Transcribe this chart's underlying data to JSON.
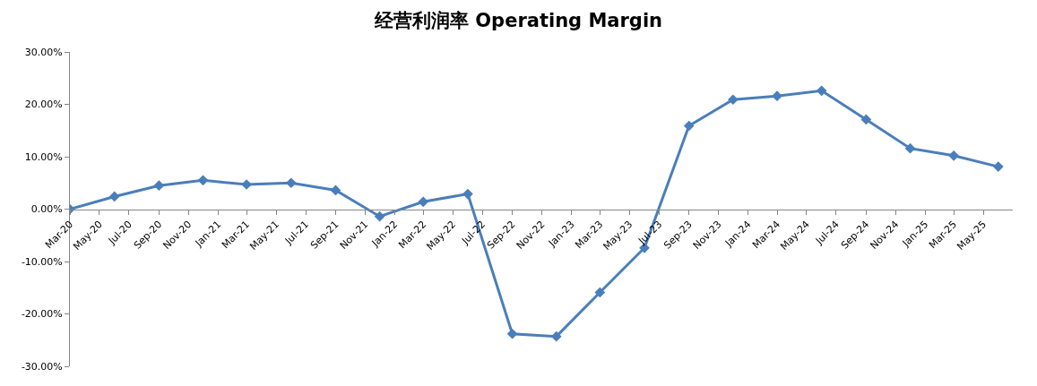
{
  "chart_data": {
    "type": "line",
    "title": "经营利润率 Operating Margin",
    "x": [
      "2020-03",
      "2020-06",
      "2020-09",
      "2020-12",
      "2021-03",
      "2021-06",
      "2021-09",
      "2021-12",
      "2022-03",
      "2022-06",
      "2022-09",
      "2022-12",
      "2023-03",
      "2023-06",
      "2023-09",
      "2023-12",
      "2024-03",
      "2024-06",
      "2024-09",
      "2024-12",
      "2025-03",
      "2025-06"
    ],
    "series": [
      {
        "color": "#4a7ebb",
        "values": [
          0,
          2.4,
          4.5,
          5.5,
          4.7,
          5.0,
          3.6,
          -1.4,
          1.4,
          2.9,
          -23.8,
          -24.3,
          -15.9,
          -7.4,
          15.9,
          20.9,
          21.6,
          22.6,
          17.1,
          11.6,
          10.2,
          8.1
        ]
      }
    ],
    "xlim": [
      "2020-03",
      "2025-07"
    ],
    "xticks": [
      {
        "value": "2020-03",
        "label": "Mar-20"
      },
      {
        "value": "2020-05",
        "label": "May-20"
      },
      {
        "value": "2020-07",
        "label": "Jul-20"
      },
      {
        "value": "2020-09",
        "label": "Sep-20"
      },
      {
        "value": "2020-11",
        "label": "Nov-20"
      },
      {
        "value": "2021-01",
        "label": "Jan-21"
      },
      {
        "value": "2021-03",
        "label": "Mar-21"
      },
      {
        "value": "2021-05",
        "label": "May-21"
      },
      {
        "value": "2021-07",
        "label": "Jul-21"
      },
      {
        "value": "2021-09",
        "label": "Sep-21"
      },
      {
        "value": "2021-11",
        "label": "Nov-21"
      },
      {
        "value": "2022-01",
        "label": "Jan-22"
      },
      {
        "value": "2022-03",
        "label": "Mar-22"
      },
      {
        "value": "2022-05",
        "label": "May-22"
      },
      {
        "value": "2022-07",
        "label": "Jul-22"
      },
      {
        "value": "2022-09",
        "label": "Sep-22"
      },
      {
        "value": "2022-11",
        "label": "Nov-22"
      },
      {
        "value": "2023-01",
        "label": "Jan-23"
      },
      {
        "value": "2023-03",
        "label": "Mar-23"
      },
      {
        "value": "2023-05",
        "label": "May-23"
      },
      {
        "value": "2023-07",
        "label": "Jul-23"
      },
      {
        "value": "2023-09",
        "label": "Sep-23"
      },
      {
        "value": "2023-11",
        "label": "Nov-23"
      },
      {
        "value": "2024-01",
        "label": "Jan-24"
      },
      {
        "value": "2024-03",
        "label": "Mar-24"
      },
      {
        "value": "2024-05",
        "label": "May-24"
      },
      {
        "value": "2024-07",
        "label": "Jul-24"
      },
      {
        "value": "2024-09",
        "label": "Sep-24"
      },
      {
        "value": "2024-11",
        "label": "Nov-24"
      },
      {
        "value": "2025-01",
        "label": "Jan-25"
      },
      {
        "value": "2025-03",
        "label": "Mar-25"
      },
      {
        "value": "2025-05",
        "label": "May-25"
      }
    ],
    "ylim": [
      -30,
      30
    ],
    "yticks": [
      {
        "value": -30,
        "label": "-30.00%"
      },
      {
        "value": -20,
        "label": "-20.00%"
      },
      {
        "value": -10,
        "label": "-10.00%"
      },
      {
        "value": 0,
        "label": "0.00%"
      },
      {
        "value": 10,
        "label": "10.00%"
      },
      {
        "value": 20,
        "label": "20.00%"
      },
      {
        "value": 30,
        "label": "30.00%"
      }
    ],
    "grid": false,
    "marker": "diamond",
    "line_style": "solid"
  }
}
